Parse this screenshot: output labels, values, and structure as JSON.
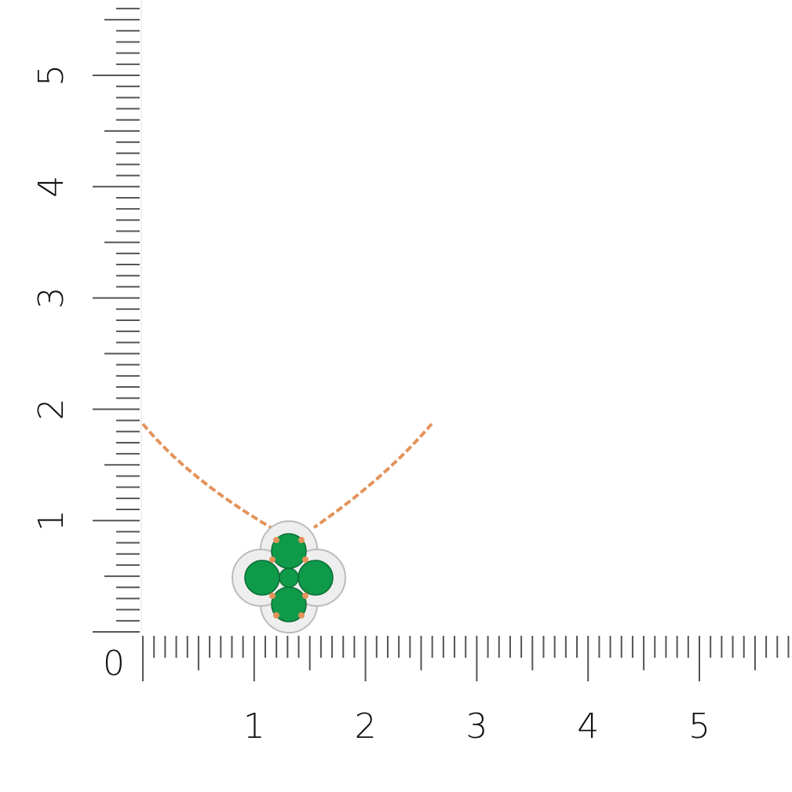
{
  "ruler": {
    "unit_labels_x": [
      "0",
      "1",
      "2",
      "3",
      "4",
      "5"
    ],
    "unit_labels_y": [
      "1",
      "2",
      "3",
      "4",
      "5"
    ],
    "tick_color": "#555555"
  },
  "product": {
    "type": "pendant-necklace",
    "metal_color": "#e3935a",
    "stone_color": "#0f9a4a",
    "halo_color": "#e8e8e8"
  }
}
